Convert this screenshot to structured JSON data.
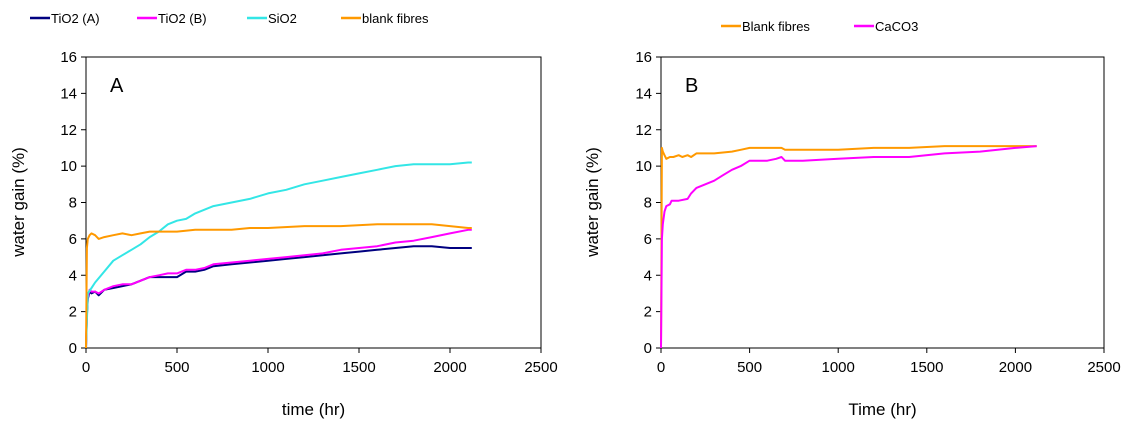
{
  "chart_data": [
    {
      "type": "line",
      "panel_label": "A",
      "xlabel": "time (hr)",
      "ylabel": "water gain (%)",
      "xlim": [
        0,
        2500
      ],
      "ylim": [
        0,
        16
      ],
      "xticks": [
        0,
        500,
        1000,
        1500,
        2000,
        2500
      ],
      "yticks": [
        0,
        2,
        4,
        6,
        8,
        10,
        12,
        14,
        16
      ],
      "grid": false,
      "legend_position": "top",
      "series": [
        {
          "name": "TiO2 (A)",
          "color": "#000080",
          "x": [
            0,
            5,
            10,
            20,
            30,
            50,
            70,
            100,
            150,
            200,
            250,
            300,
            350,
            400,
            450,
            500,
            550,
            600,
            650,
            700,
            800,
            900,
            1000,
            1100,
            1200,
            1300,
            1400,
            1500,
            1600,
            1700,
            1800,
            1900,
            2000,
            2100,
            2120
          ],
          "y": [
            0,
            1.8,
            2.7,
            3.1,
            3.0,
            3.1,
            2.9,
            3.2,
            3.3,
            3.4,
            3.5,
            3.7,
            3.9,
            3.9,
            3.9,
            3.9,
            4.2,
            4.2,
            4.3,
            4.5,
            4.6,
            4.7,
            4.8,
            4.9,
            5.0,
            5.1,
            5.2,
            5.3,
            5.4,
            5.5,
            5.6,
            5.6,
            5.5,
            5.5,
            5.5
          ]
        },
        {
          "name": "TiO2 (B)",
          "color": "#ff00ff",
          "x": [
            0,
            5,
            10,
            20,
            30,
            50,
            70,
            100,
            150,
            200,
            250,
            300,
            350,
            400,
            450,
            500,
            550,
            600,
            650,
            700,
            800,
            900,
            1000,
            1100,
            1200,
            1300,
            1400,
            1500,
            1600,
            1700,
            1800,
            1900,
            2000,
            2100,
            2120
          ],
          "y": [
            0,
            2.0,
            2.8,
            3.2,
            3.1,
            3.1,
            3.0,
            3.2,
            3.4,
            3.5,
            3.5,
            3.7,
            3.9,
            4.0,
            4.1,
            4.1,
            4.3,
            4.3,
            4.4,
            4.6,
            4.7,
            4.8,
            4.9,
            5.0,
            5.1,
            5.2,
            5.4,
            5.5,
            5.6,
            5.8,
            5.9,
            6.1,
            6.3,
            6.5,
            6.5
          ]
        },
        {
          "name": "SiO2",
          "color": "#33e6e6",
          "x": [
            0,
            10,
            30,
            50,
            100,
            150,
            200,
            250,
            300,
            350,
            400,
            450,
            500,
            550,
            600,
            700,
            800,
            900,
            1000,
            1100,
            1200,
            1300,
            1400,
            1500,
            1600,
            1700,
            1800,
            1900,
            2000,
            2100,
            2120
          ],
          "y": [
            0,
            3.0,
            3.3,
            3.6,
            4.2,
            4.8,
            5.1,
            5.4,
            5.7,
            6.1,
            6.4,
            6.8,
            7.0,
            7.1,
            7.4,
            7.8,
            8.0,
            8.2,
            8.5,
            8.7,
            9.0,
            9.2,
            9.4,
            9.6,
            9.8,
            10.0,
            10.1,
            10.1,
            10.1,
            10.2,
            10.2
          ]
        },
        {
          "name": "blank fibres",
          "color": "#ff9900",
          "x": [
            0,
            5,
            10,
            20,
            30,
            50,
            70,
            100,
            150,
            200,
            250,
            300,
            350,
            400,
            500,
            600,
            700,
            800,
            900,
            1000,
            1200,
            1400,
            1600,
            1800,
            1900,
            2000,
            2100,
            2120
          ],
          "y": [
            0,
            5.5,
            6.0,
            6.2,
            6.3,
            6.2,
            6.0,
            6.1,
            6.2,
            6.3,
            6.2,
            6.3,
            6.4,
            6.4,
            6.4,
            6.5,
            6.5,
            6.5,
            6.6,
            6.6,
            6.7,
            6.7,
            6.8,
            6.8,
            6.8,
            6.7,
            6.6,
            6.6
          ]
        }
      ]
    },
    {
      "type": "line",
      "panel_label": "B",
      "xlabel": "Time (hr)",
      "ylabel": "water gain (%)",
      "xlim": [
        0,
        2500
      ],
      "ylim": [
        0,
        16
      ],
      "xticks": [
        0,
        500,
        1000,
        1500,
        2000,
        2500
      ],
      "yticks": [
        0,
        2,
        4,
        6,
        8,
        10,
        12,
        14,
        16
      ],
      "grid": false,
      "legend_position": "top",
      "series": [
        {
          "name": "Blank fibres",
          "color": "#ff9900",
          "x": [
            0,
            5,
            10,
            20,
            30,
            50,
            70,
            100,
            120,
            150,
            170,
            200,
            300,
            400,
            450,
            500,
            600,
            680,
            700,
            800,
            1000,
            1200,
            1400,
            1600,
            1800,
            2000,
            2120
          ],
          "y": [
            0,
            11.0,
            10.8,
            10.6,
            10.4,
            10.5,
            10.5,
            10.6,
            10.5,
            10.6,
            10.5,
            10.7,
            10.7,
            10.8,
            10.9,
            11.0,
            11.0,
            11.0,
            10.9,
            10.9,
            10.9,
            11.0,
            11.0,
            11.1,
            11.1,
            11.1,
            11.1
          ]
        },
        {
          "name": "CaCO3",
          "color": "#ff00ff",
          "x": [
            0,
            5,
            10,
            20,
            30,
            50,
            60,
            100,
            150,
            170,
            200,
            300,
            350,
            400,
            450,
            500,
            600,
            650,
            680,
            700,
            800,
            1000,
            1200,
            1400,
            1600,
            1800,
            2000,
            2120
          ],
          "y": [
            0,
            6.0,
            6.8,
            7.5,
            7.8,
            7.9,
            8.1,
            8.1,
            8.2,
            8.5,
            8.8,
            9.2,
            9.5,
            9.8,
            10.0,
            10.3,
            10.3,
            10.4,
            10.5,
            10.3,
            10.3,
            10.4,
            10.5,
            10.5,
            10.7,
            10.8,
            11.0,
            11.1
          ]
        }
      ]
    }
  ]
}
